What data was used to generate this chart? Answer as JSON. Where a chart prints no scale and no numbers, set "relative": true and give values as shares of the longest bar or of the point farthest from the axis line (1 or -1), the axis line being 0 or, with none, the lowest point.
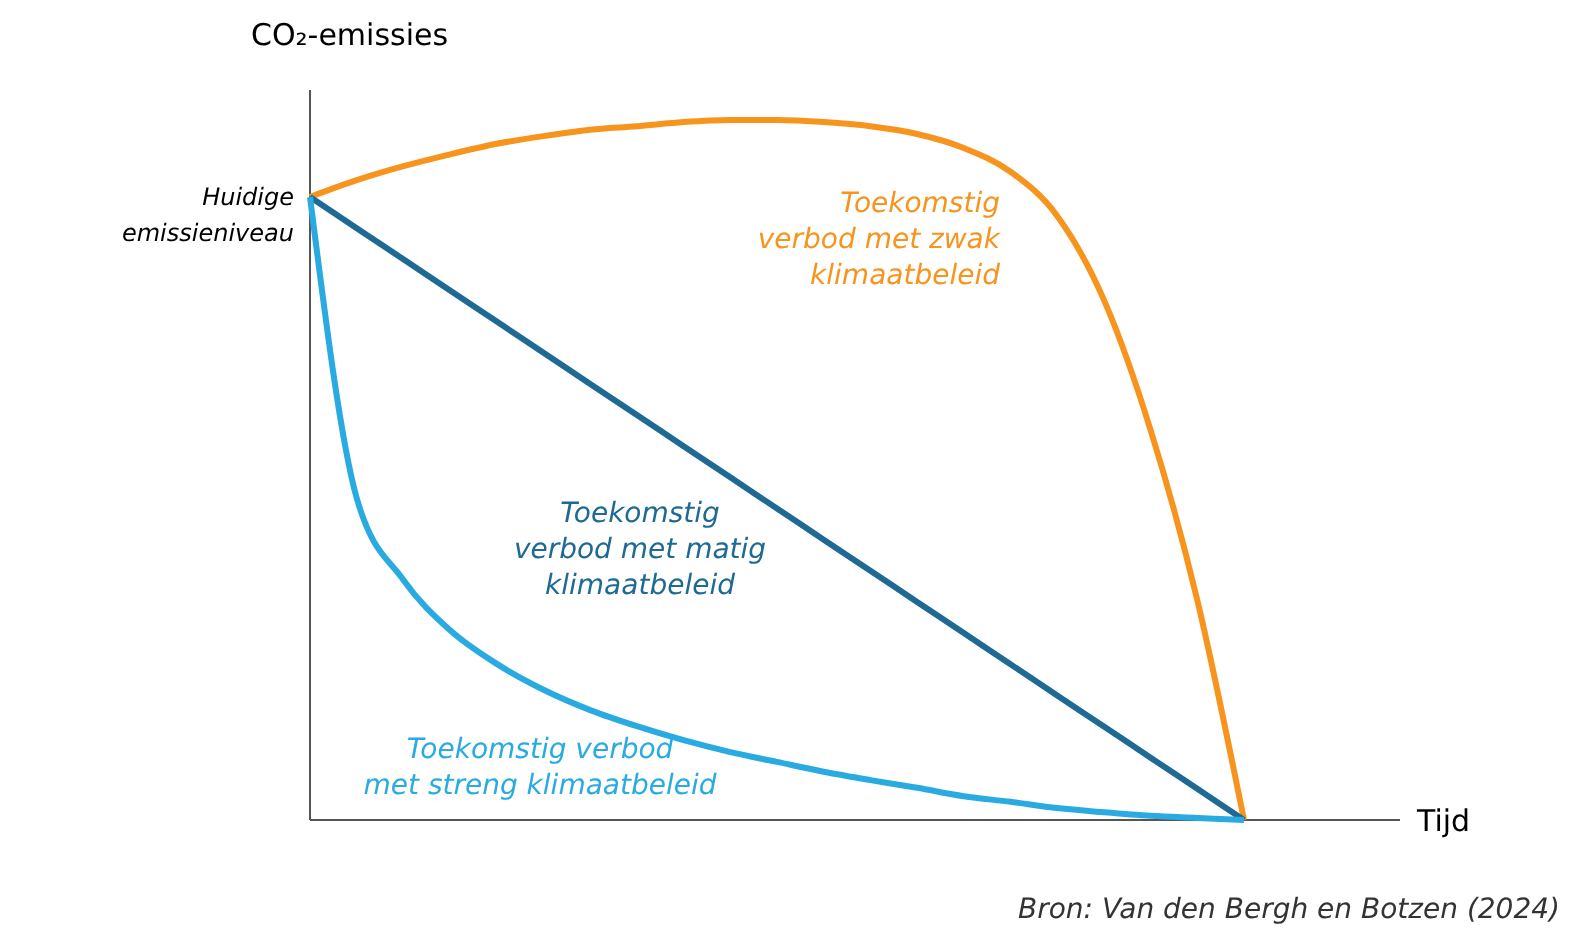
{
  "chart_data": {
    "type": "line",
    "relative": true,
    "xlabel": "Tijd",
    "ylabel": "CO₂-emissies",
    "categories": [
      null,
      null,
      null,
      null,
      null,
      null,
      null,
      null,
      null,
      null,
      null,
      null,
      null,
      null,
      null,
      null,
      null,
      null,
      null,
      null,
      null
    ],
    "series": [
      {
        "name": "Toekomstig\nverbod met zwak\nklimaatbeleid",
        "color": "#f7941d",
        "values": [
          0.89,
          0.914,
          0.934,
          0.951,
          0.966,
          0.977,
          0.986,
          0.991,
          0.997,
          1.0,
          1.0,
          0.997,
          0.991,
          0.98,
          0.96,
          0.926,
          0.863,
          0.743,
          0.557,
          0.314,
          0
        ]
      },
      {
        "name": "Toekomstig\nverbod met matig\nklimaatbeleid",
        "color": "#1f6a94",
        "values": [
          0.89,
          0.8455,
          0.801,
          0.7565,
          0.712,
          0.6675,
          0.623,
          0.5785,
          0.534,
          0.4895,
          0.445,
          0.4005,
          0.356,
          0.3115,
          0.267,
          0.2225,
          0.178,
          0.1335,
          0.089,
          0.0445,
          0
        ]
      },
      {
        "name": "Toekomstig verbod\nmet streng klimaatbeleid",
        "color": "#29abe2",
        "values": [
          0.89,
          0.46,
          0.343,
          0.271,
          0.223,
          0.186,
          0.157,
          0.134,
          0.114,
          0.097,
          0.083,
          0.069,
          0.057,
          0.046,
          0.034,
          0.026,
          0.017,
          0.011,
          0.006,
          0.003,
          0
        ]
      }
    ],
    "annotations": [
      "Huidige\nemissieniveau",
      "Bron: Van den Bergh en Botzen (2024)"
    ]
  }
}
